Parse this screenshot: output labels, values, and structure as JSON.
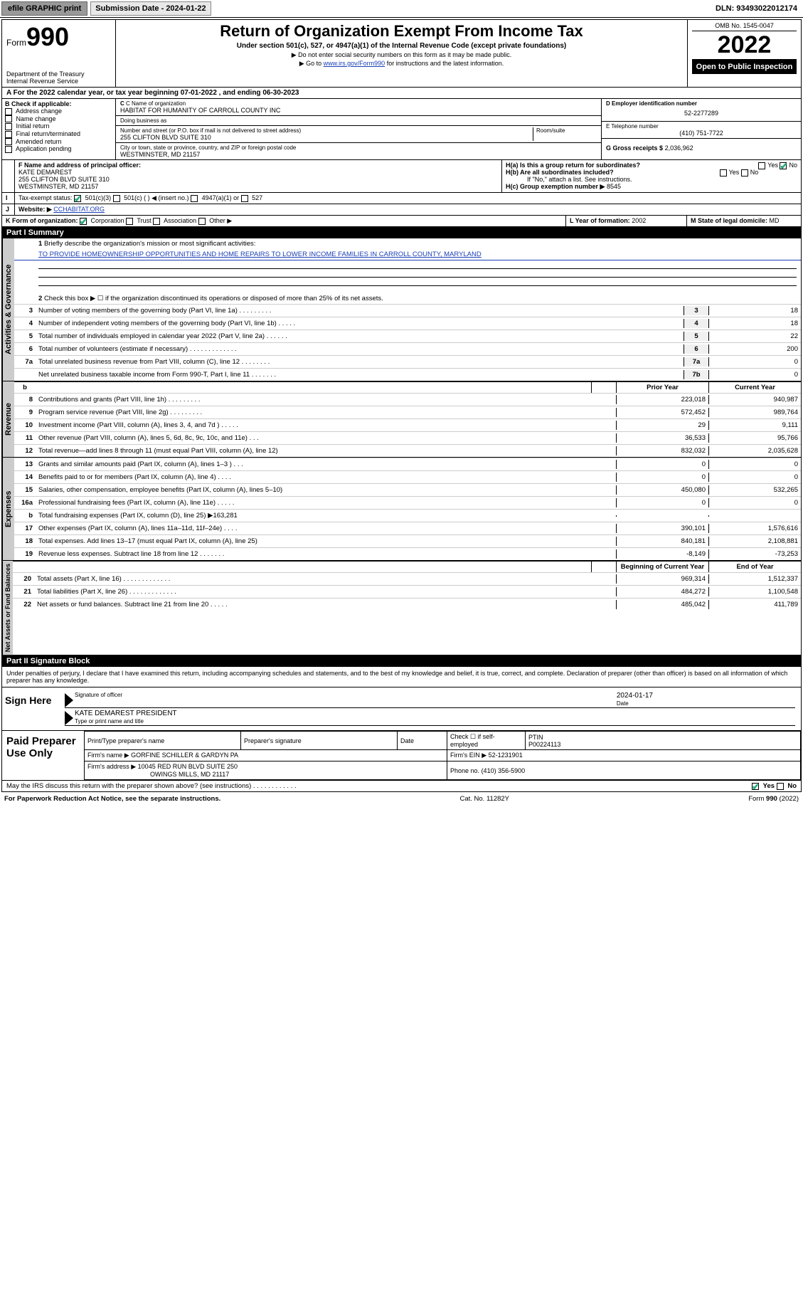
{
  "topbar": {
    "efile": "efile GRAPHIC print",
    "sub_label": "Submission Date - 2024-01-22",
    "dln": "DLN: 93493022012174"
  },
  "header": {
    "form_prefix": "Form",
    "form_num": "990",
    "dept": "Department of the Treasury",
    "irs": "Internal Revenue Service",
    "title": "Return of Organization Exempt From Income Tax",
    "sub1": "Under section 501(c), 527, or 4947(a)(1) of the Internal Revenue Code (except private foundations)",
    "sub2": "▶ Do not enter social security numbers on this form as it may be made public.",
    "sub3_pre": "▶ Go to ",
    "sub3_link": "www.irs.gov/Form990",
    "sub3_post": " for instructions and the latest information.",
    "omb": "OMB No. 1545-0047",
    "year": "2022",
    "open": "Open to Public Inspection"
  },
  "a_line": "A For the 2022 calendar year, or tax year beginning 07-01-2022   , and ending 06-30-2023",
  "b": {
    "title": "B Check if applicable:",
    "opts": [
      "Address change",
      "Name change",
      "Initial return",
      "Final return/terminated",
      "Amended return",
      "Application pending"
    ]
  },
  "c": {
    "name_lbl": "C Name of organization",
    "name": "HABITAT FOR HUMANITY OF CARROLL COUNTY INC",
    "dba_lbl": "Doing business as",
    "dba": "",
    "addr_lbl": "Number and street (or P.O. box if mail is not delivered to street address)",
    "room_lbl": "Room/suite",
    "addr": "255 CLIFTON BLVD SUITE 310",
    "city_lbl": "City or town, state or province, country, and ZIP or foreign postal code",
    "city": "WESTMINSTER, MD  21157"
  },
  "d": {
    "lbl": "D Employer identification number",
    "val": "52-2277289"
  },
  "e": {
    "lbl": "E Telephone number",
    "val": "(410) 751-7722"
  },
  "g": {
    "lbl": "G Gross receipts $",
    "val": "2,036,962"
  },
  "f": {
    "lbl": "F  Name and address of principal officer:",
    "name": "KATE DEMAREST",
    "addr1": "255 CLIFTON BLVD SUITE 310",
    "addr2": "WESTMINSTER, MD  21157"
  },
  "h": {
    "ha": "H(a)  Is this a group return for subordinates?",
    "hb": "H(b)  Are all subordinates included?",
    "hb2": "If \"No,\" attach a list. See instructions.",
    "hc_lbl": "H(c)  Group exemption number ▶",
    "hc_val": "8545"
  },
  "i": {
    "lbl": "Tax-exempt status:",
    "o1": "501(c)(3)",
    "o2": "501(c) (  ) ◀ (insert no.)",
    "o3": "4947(a)(1) or",
    "o4": "527"
  },
  "j": {
    "lbl": "Website: ▶",
    "val": "CCHABITAT.ORG"
  },
  "k": {
    "lbl": "K Form of organization:",
    "o1": "Corporation",
    "o2": "Trust",
    "o3": "Association",
    "o4": "Other ▶"
  },
  "l": {
    "lbl": "L Year of formation:",
    "val": "2002"
  },
  "m": {
    "lbl": "M State of legal domicile:",
    "val": "MD"
  },
  "part1": {
    "hdr": "Part I     Summary",
    "line1_lbl": "Briefly describe the organization's mission or most significant activities:",
    "line1_val": "TO PROVIDE HOMEOWNERSHIP OPPORTUNITIES AND HOME REPAIRS TO LOWER INCOME FAMILIES IN CARROLL COUNTY, MARYLAND",
    "line2": "Check this box ▶ ☐  if the organization discontinued its operations or disposed of more than 25% of its net assets.",
    "gov_label": "Activities & Governance",
    "rev_label": "Revenue",
    "exp_label": "Expenses",
    "na_label": "Net Assets or Fund Balances",
    "rows_gov": [
      {
        "n": "3",
        "t": "Number of voting members of the governing body (Part VI, line 1a)  .    .    .    .    .    .    .    .    .",
        "box": "3",
        "v": "18"
      },
      {
        "n": "4",
        "t": "Number of independent voting members of the governing body (Part VI, line 1b)  .    .    .    .    .",
        "box": "4",
        "v": "18"
      },
      {
        "n": "5",
        "t": "Total number of individuals employed in calendar year 2022 (Part V, line 2a)  .    .    .    .    .    .",
        "box": "5",
        "v": "22"
      },
      {
        "n": "6",
        "t": "Total number of volunteers (estimate if necessary)  .    .    .    .    .    .    .    .    .    .    .    .    .",
        "box": "6",
        "v": "200"
      },
      {
        "n": "7a",
        "t": "Total unrelated business revenue from Part VIII, column (C), line 12  .    .    .    .    .    .    .    .",
        "box": "7a",
        "v": "0"
      },
      {
        "n": "",
        "t": "Net unrelated business taxable income from Form 990-T, Part I, line 11  .    .    .    .    .    .    .",
        "box": "7b",
        "v": "0"
      }
    ],
    "col_prior": "Prior Year",
    "col_curr": "Current Year",
    "col_boy": "Beginning of Current Year",
    "col_eoy": "End of Year",
    "rows_rev": [
      {
        "n": "8",
        "t": "Contributions and grants (Part VIII, line 1h)  .    .    .    .    .    .    .    .    .",
        "p": "223,018",
        "c": "940,987"
      },
      {
        "n": "9",
        "t": "Program service revenue (Part VIII, line 2g)  .    .    .    .    .    .    .    .    .",
        "p": "572,452",
        "c": "989,764"
      },
      {
        "n": "10",
        "t": "Investment income (Part VIII, column (A), lines 3, 4, and 7d )  .    .    .    .    .",
        "p": "29",
        "c": "9,111"
      },
      {
        "n": "11",
        "t": "Other revenue (Part VIII, column (A), lines 5, 6d, 8c, 9c, 10c, and 11e)  .    .    .",
        "p": "36,533",
        "c": "95,766"
      },
      {
        "n": "12",
        "t": "Total revenue—add lines 8 through 11 (must equal Part VIII, column (A), line 12)",
        "p": "832,032",
        "c": "2,035,628"
      }
    ],
    "rows_exp": [
      {
        "n": "13",
        "t": "Grants and similar amounts paid (Part IX, column (A), lines 1–3 )  .    .    .",
        "p": "0",
        "c": "0"
      },
      {
        "n": "14",
        "t": "Benefits paid to or for members (Part IX, column (A), line 4)  .    .    .    .",
        "p": "0",
        "c": "0"
      },
      {
        "n": "15",
        "t": "Salaries, other compensation, employee benefits (Part IX, column (A), lines 5–10)",
        "p": "450,080",
        "c": "532,265"
      },
      {
        "n": "16a",
        "t": "Professional fundraising fees (Part IX, column (A), line 11e)  .    .    .    .    .",
        "p": "0",
        "c": "0"
      },
      {
        "n": "b",
        "t": "Total fundraising expenses (Part IX, column (D), line 25) ▶163,281",
        "p": "",
        "c": ""
      },
      {
        "n": "17",
        "t": "Other expenses (Part IX, column (A), lines 11a–11d, 11f–24e)  .    .    .    .",
        "p": "390,101",
        "c": "1,576,616"
      },
      {
        "n": "18",
        "t": "Total expenses. Add lines 13–17 (must equal Part IX, column (A), line 25)",
        "p": "840,181",
        "c": "2,108,881"
      },
      {
        "n": "19",
        "t": "Revenue less expenses. Subtract line 18 from line 12  .    .    .    .    .    .    .",
        "p": "-8,149",
        "c": "-73,253"
      }
    ],
    "rows_na": [
      {
        "n": "20",
        "t": "Total assets (Part X, line 16)  .    .    .    .    .    .    .    .    .    .    .    .    .",
        "p": "969,314",
        "c": "1,512,337"
      },
      {
        "n": "21",
        "t": "Total liabilities (Part X, line 26)  .    .    .    .    .    .    .    .    .    .    .    .    .",
        "p": "484,272",
        "c": "1,100,548"
      },
      {
        "n": "22",
        "t": "Net assets or fund balances. Subtract line 21 from line 20  .    .    .    .    .",
        "p": "485,042",
        "c": "411,789"
      }
    ]
  },
  "part2": {
    "hdr": "Part II     Signature Block",
    "decl": "Under penalties of perjury, I declare that I have examined this return, including accompanying schedules and statements, and to the best of my knowledge and belief, it is true, correct, and complete. Declaration of preparer (other than officer) is based on all information of which preparer has any knowledge.",
    "sign_here": "Sign Here",
    "sig_of": "Signature of officer",
    "date_lbl": "Date",
    "date_val": "2024-01-17",
    "typed": "KATE DEMAREST PRESIDENT",
    "typed_lbl": "Type or print name and title",
    "paid": "Paid Preparer Use Only",
    "pp_name_lbl": "Print/Type preparer's name",
    "pp_sig_lbl": "Preparer's signature",
    "pp_date_lbl": "Date",
    "pp_check": "Check ☐ if self-employed",
    "ptin_lbl": "PTIN",
    "ptin": "P00224113",
    "firm_name_lbl": "Firm's name    ▶",
    "firm_name": "GORFINE SCHILLER & GARDYN PA",
    "firm_ein_lbl": "Firm's EIN ▶",
    "firm_ein": "52-1231901",
    "firm_addr_lbl": "Firm's address ▶",
    "firm_addr1": "10045 RED RUN BLVD SUITE 250",
    "firm_addr2": "OWINGS MILLS, MD  21117",
    "phone_lbl": "Phone no.",
    "phone": "(410) 356-5900",
    "may_irs": "May the IRS discuss this return with the preparer shown above? (see instructions)  .    .    .    .    .    .    .    .    .    .    .    .",
    "yes": "Yes",
    "no": "No"
  },
  "footer": {
    "pra": "For Paperwork Reduction Act Notice, see the separate instructions.",
    "cat": "Cat. No. 11282Y",
    "formno": "Form 990 (2022)"
  }
}
